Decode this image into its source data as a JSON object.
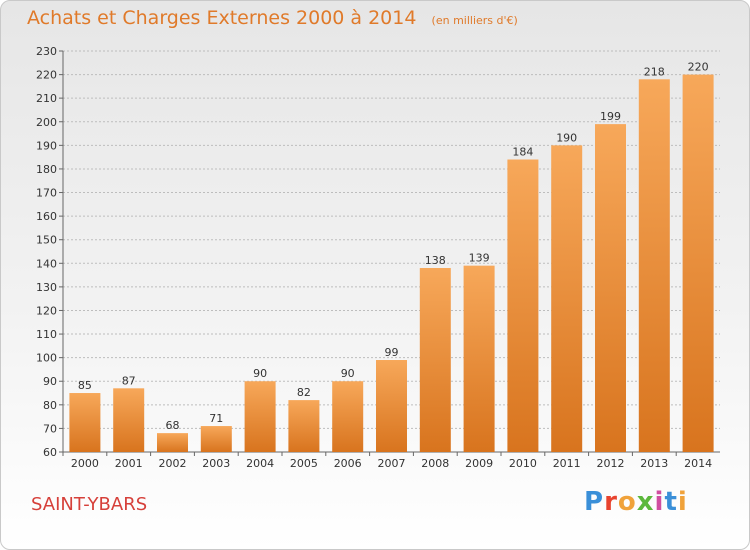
{
  "title": "Achats et Charges Externes 2000 à 2014",
  "subtitle": "(en milliers d'€)",
  "commune": "SAINT-YBARS",
  "logo": {
    "letters": [
      "P",
      "r",
      "o",
      "x",
      "i",
      "t",
      "i"
    ],
    "colors": [
      "#3a8fd8",
      "#e8432e",
      "#f0a23a",
      "#5cb83c",
      "#d04ea0",
      "#3a8fd8",
      "#f0a23a"
    ]
  },
  "colors": {
    "title": "#e07a2a",
    "bar_light": "#f7a85a",
    "bar_dark": "#d8741e",
    "grid": "#bdbdbd",
    "commune": "#d6403a"
  },
  "chart_data": {
    "type": "bar",
    "title": "Achats et Charges Externes 2000 à 2014",
    "subtitle": "(en milliers d'€)",
    "categories": [
      "2000",
      "2001",
      "2002",
      "2003",
      "2004",
      "2005",
      "2006",
      "2007",
      "2008",
      "2009",
      "2010",
      "2011",
      "2012",
      "2013",
      "2014"
    ],
    "values": [
      85,
      87,
      68,
      71,
      90,
      82,
      90,
      99,
      138,
      139,
      184,
      190,
      199,
      218,
      220
    ],
    "ylim": [
      60,
      230
    ],
    "yticks": [
      60,
      70,
      80,
      90,
      100,
      110,
      120,
      130,
      140,
      150,
      160,
      170,
      180,
      190,
      200,
      210,
      220,
      230
    ],
    "grid": true,
    "xlabel": "",
    "ylabel": ""
  }
}
